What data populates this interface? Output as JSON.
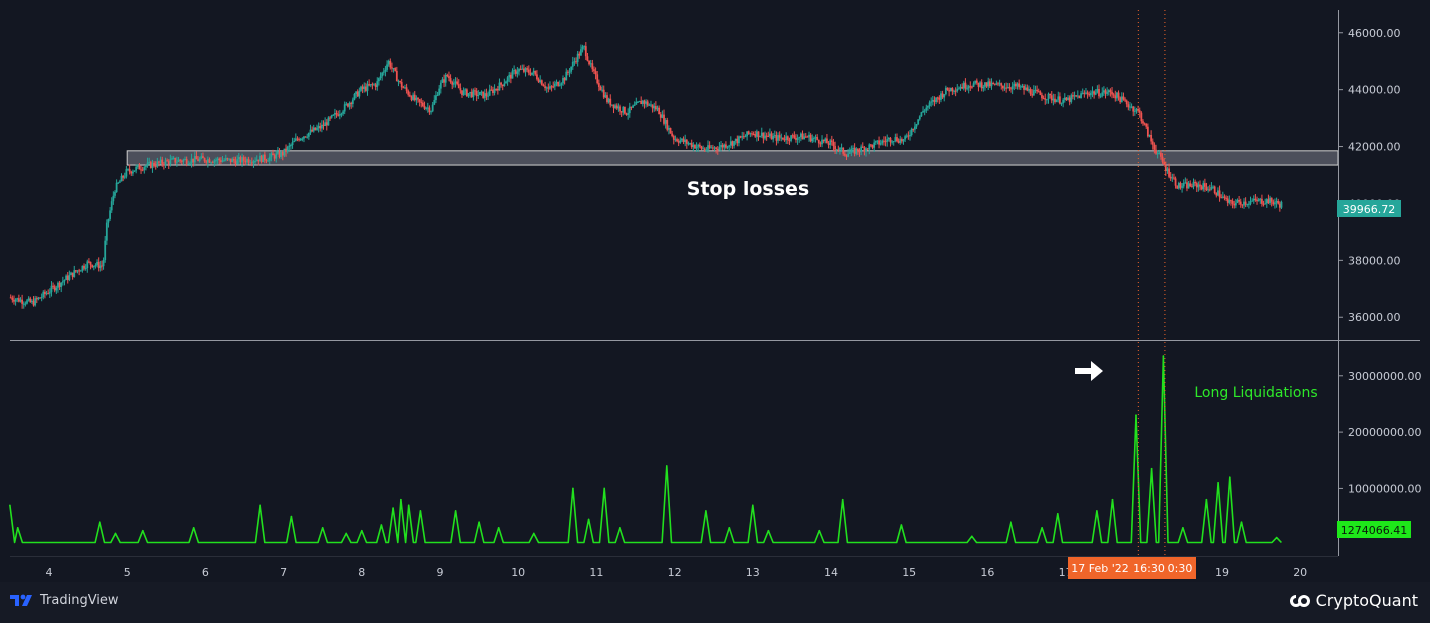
{
  "colors": {
    "background": "#131722",
    "up_candle": "#26a69a",
    "down_candle": "#ef5350",
    "liquidation_line": "#22e01e",
    "crosshair": "#f0652a",
    "price_badge": "#26a69a",
    "time_badge": "#f0652a"
  },
  "annotations": {
    "stop_losses": "Stop losses",
    "long_liquidations": "Long Liquidations",
    "arrow_icon": "right-arrow-icon"
  },
  "crosshair": {
    "date_label": "17 Feb '22",
    "time_label": "16:30",
    "extra_label": "0:30"
  },
  "branding": {
    "tradingview": "TradingView",
    "cryptoquant": "CryptoQuant"
  },
  "chart_data": [
    {
      "type": "candlestick",
      "ylim": [
        35200,
        46800
      ],
      "y_ticks": [
        "46000.00",
        "44000.00",
        "42000.00",
        "40000.00",
        "38000.00",
        "36000.00"
      ],
      "last_price_label": "39966.72",
      "last_price": 39966.72,
      "stop_loss_zone": {
        "x_start": 5.0,
        "x_end": 20.5,
        "y_low": 41350,
        "y_high": 41850
      },
      "price_path": [
        [
          3.5,
          36700
        ],
        [
          3.8,
          36500
        ],
        [
          4.0,
          36900
        ],
        [
          4.2,
          37300
        ],
        [
          4.5,
          37900
        ],
        [
          4.7,
          37800
        ],
        [
          4.75,
          39200
        ],
        [
          4.85,
          40500
        ],
        [
          5.0,
          41100
        ],
        [
          5.2,
          41300
        ],
        [
          5.6,
          41500
        ],
        [
          6.0,
          41550
        ],
        [
          6.4,
          41500
        ],
        [
          6.8,
          41600
        ],
        [
          7.0,
          41750
        ],
        [
          7.2,
          42300
        ],
        [
          7.5,
          42700
        ],
        [
          7.8,
          43400
        ],
        [
          8.0,
          44000
        ],
        [
          8.2,
          44200
        ],
        [
          8.35,
          45000
        ],
        [
          8.5,
          44200
        ],
        [
          8.7,
          43600
        ],
        [
          8.9,
          43300
        ],
        [
          9.0,
          44100
        ],
        [
          9.1,
          44500
        ],
        [
          9.3,
          43900
        ],
        [
          9.6,
          43800
        ],
        [
          9.8,
          44200
        ],
        [
          10.0,
          44700
        ],
        [
          10.2,
          44600
        ],
        [
          10.4,
          44000
        ],
        [
          10.6,
          44400
        ],
        [
          10.75,
          45100
        ],
        [
          10.85,
          45500
        ],
        [
          10.95,
          44700
        ],
        [
          11.15,
          43600
        ],
        [
          11.4,
          43200
        ],
        [
          11.6,
          43600
        ],
        [
          11.8,
          43300
        ],
        [
          12.0,
          42300
        ],
        [
          12.4,
          41900
        ],
        [
          12.6,
          42000
        ],
        [
          12.8,
          42200
        ],
        [
          13.0,
          42500
        ],
        [
          13.3,
          42300
        ],
        [
          13.7,
          42350
        ],
        [
          14.0,
          42100
        ],
        [
          14.2,
          41750
        ],
        [
          14.5,
          42000
        ],
        [
          14.8,
          42300
        ],
        [
          14.95,
          42200
        ],
        [
          15.2,
          43300
        ],
        [
          15.5,
          44000
        ],
        [
          15.8,
          44200
        ],
        [
          16.1,
          44150
        ],
        [
          16.4,
          44100
        ],
        [
          16.7,
          43800
        ],
        [
          17.0,
          43600
        ],
        [
          17.3,
          43900
        ],
        [
          17.6,
          43900
        ],
        [
          17.8,
          43500
        ],
        [
          17.95,
          43200
        ],
        [
          18.1,
          42200
        ],
        [
          18.3,
          41200
        ],
        [
          18.45,
          40600
        ],
        [
          18.7,
          40650
        ],
        [
          18.9,
          40500
        ],
        [
          19.1,
          40000
        ],
        [
          19.3,
          40050
        ],
        [
          19.6,
          40100
        ],
        [
          19.75,
          39966.72
        ]
      ]
    },
    {
      "type": "line",
      "series": [
        {
          "name": "Long Liquidations"
        }
      ],
      "ylim": [
        -2000000,
        36000000
      ],
      "y_ticks": [
        "30000000.00",
        "20000000.00",
        "10000000.00"
      ],
      "last_value_label": "1274066.41",
      "last_value": 1274066.41,
      "x_ticks": [
        "4",
        "5",
        "6",
        "7",
        "8",
        "9",
        "10",
        "11",
        "12",
        "13",
        "14",
        "15",
        "16",
        "17",
        "18",
        "19",
        "20"
      ],
      "baseline": 400000,
      "spikes": [
        [
          3.5,
          7000000
        ],
        [
          3.6,
          3000000
        ],
        [
          4.65,
          4000000
        ],
        [
          4.85,
          2000000
        ],
        [
          5.2,
          2500000
        ],
        [
          5.85,
          3000000
        ],
        [
          6.7,
          7000000
        ],
        [
          7.1,
          5000000
        ],
        [
          7.5,
          3000000
        ],
        [
          7.8,
          2000000
        ],
        [
          8.0,
          2500000
        ],
        [
          8.25,
          3500000
        ],
        [
          8.4,
          6500000
        ],
        [
          8.5,
          8000000
        ],
        [
          8.6,
          7000000
        ],
        [
          8.75,
          6000000
        ],
        [
          9.2,
          6000000
        ],
        [
          9.5,
          4000000
        ],
        [
          9.75,
          3000000
        ],
        [
          10.2,
          2000000
        ],
        [
          10.7,
          10000000
        ],
        [
          10.9,
          4500000
        ],
        [
          11.1,
          10000000
        ],
        [
          11.3,
          3000000
        ],
        [
          11.9,
          14000000
        ],
        [
          12.4,
          6000000
        ],
        [
          12.7,
          3000000
        ],
        [
          13.0,
          7000000
        ],
        [
          13.2,
          2500000
        ],
        [
          13.85,
          2500000
        ],
        [
          14.15,
          8000000
        ],
        [
          14.9,
          3500000
        ],
        [
          15.8,
          1500000
        ],
        [
          16.3,
          4000000
        ],
        [
          16.7,
          3000000
        ],
        [
          16.9,
          5500000
        ],
        [
          17.4,
          6000000
        ],
        [
          17.6,
          8000000
        ],
        [
          17.9,
          23000000
        ],
        [
          18.1,
          13500000
        ],
        [
          18.25,
          33500000
        ],
        [
          18.5,
          3000000
        ],
        [
          18.8,
          8000000
        ],
        [
          18.95,
          11000000
        ],
        [
          19.1,
          12000000
        ],
        [
          19.25,
          4000000
        ],
        [
          19.7,
          1274066.41
        ]
      ]
    }
  ]
}
